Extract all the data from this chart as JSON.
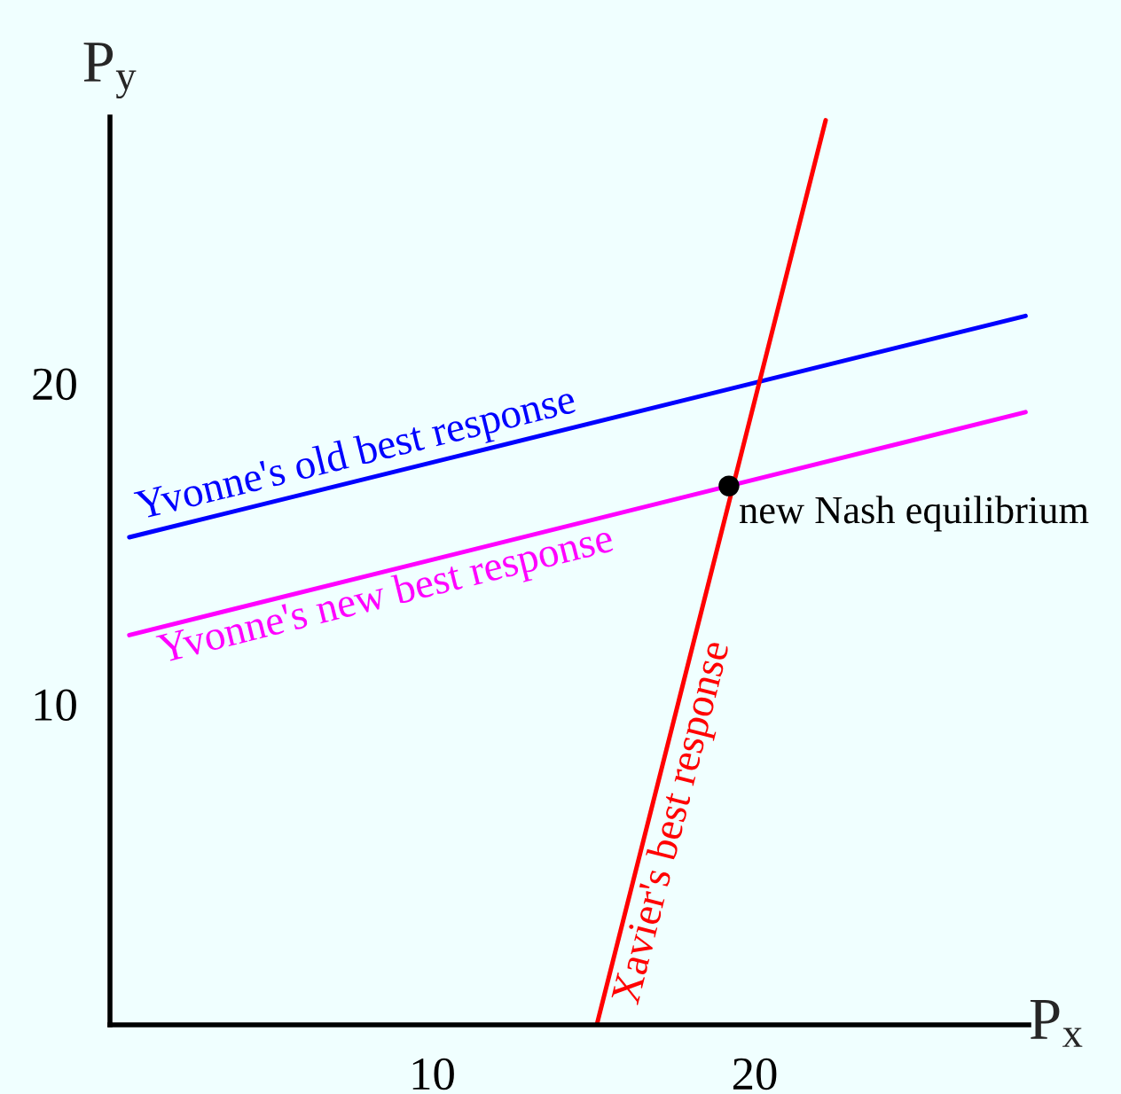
{
  "chart_data": {
    "type": "line",
    "xlabel": "P$_{x}$",
    "ylabel": "P$_{y}$",
    "xlim": [
      0,
      28.5
    ],
    "ylim": [
      0,
      28.3
    ],
    "xticks": [
      10,
      20
    ],
    "yticks": [
      10,
      20
    ],
    "grid": false,
    "legend": false,
    "marker": "none",
    "line_style": "solid",
    "series": [
      {
        "name": "Yvonne's old best response",
        "color": "#0000ff",
        "x": [
          0.6,
          28.4
        ],
        "values": [
          15.2,
          22.1
        ]
      },
      {
        "name": "Yvonne's new best response",
        "color": "#ff00ff",
        "x": [
          0.6,
          28.4
        ],
        "values": [
          12.15,
          19.1
        ]
      },
      {
        "name": "Xavier's best response",
        "color": "#ff0000",
        "x": [
          15.1,
          22.2
        ],
        "values": [
          0,
          28.2
        ]
      },
      {
        "type": "scatter",
        "color": "#000000",
        "x": [
          19.2
        ],
        "values": [
          16.8
        ],
        "marker": "circle"
      }
    ],
    "annotations": [
      {
        "text": "new Nash equilibrium",
        "x": 19.2,
        "y": 16.8
      }
    ]
  }
}
